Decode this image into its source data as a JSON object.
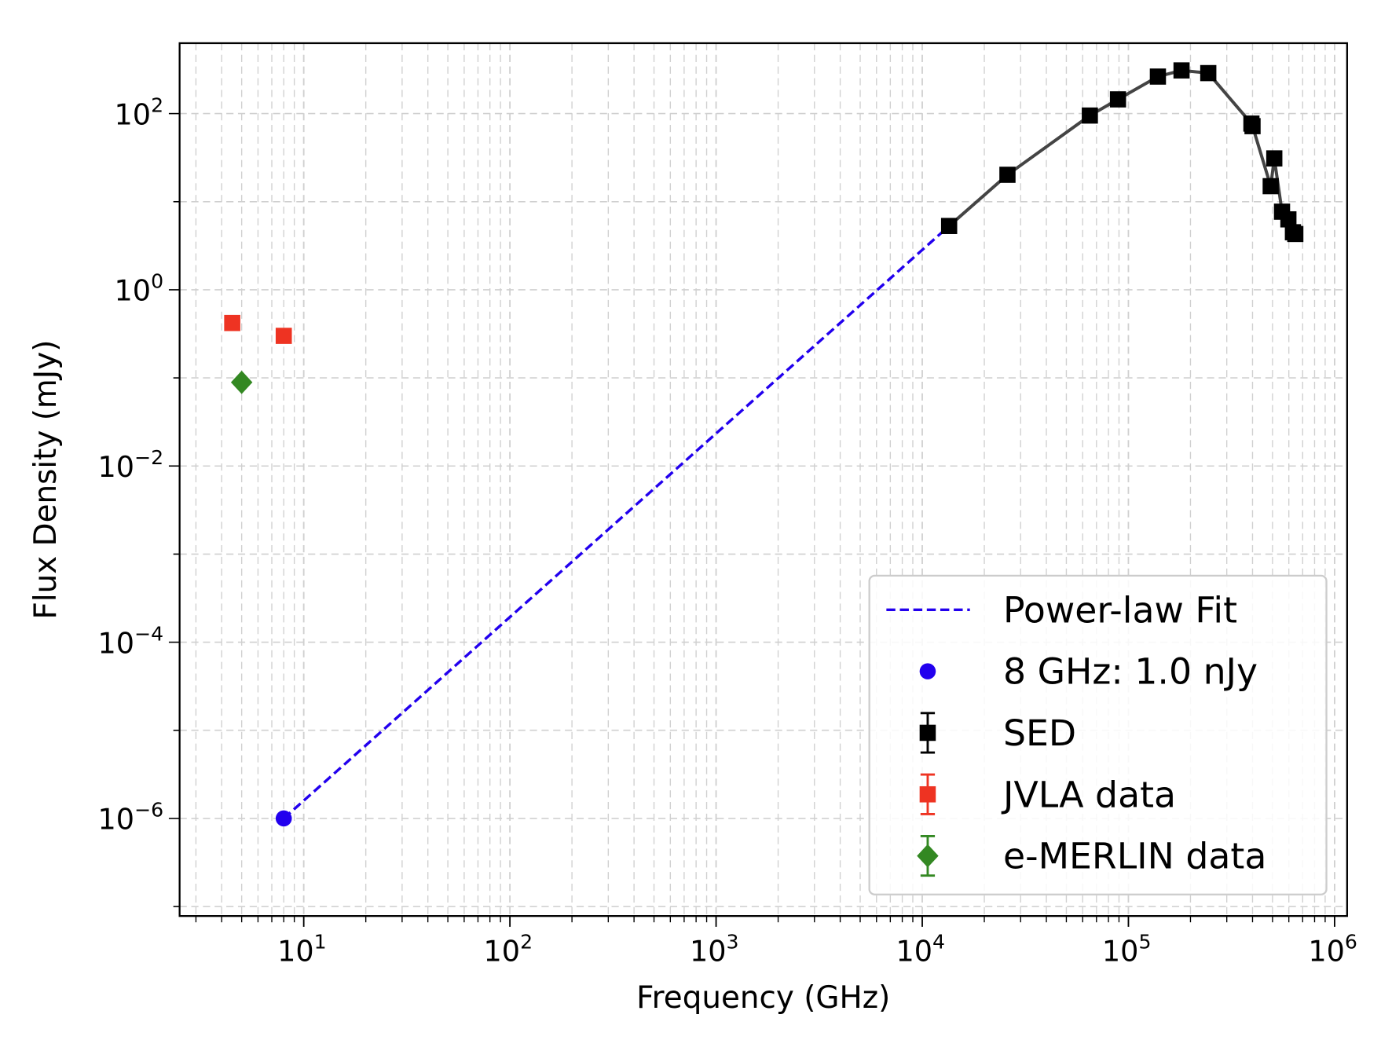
{
  "chart_data": {
    "type": "scatter",
    "xlabel": "Frequency (GHz)",
    "ylabel": "Flux Density (mJy)",
    "xscale": "log",
    "yscale": "log",
    "xlim": [
      2.5,
      1150000
    ],
    "ylim": [
      7.8e-08,
      630
    ],
    "grid": true,
    "legend_placement": "lower-right",
    "x_ticks": [
      {
        "exp": "1",
        "value": 10
      },
      {
        "exp": "2",
        "value": 100
      },
      {
        "exp": "3",
        "value": 1000
      },
      {
        "exp": "4",
        "value": 10000
      },
      {
        "exp": "5",
        "value": 100000
      },
      {
        "exp": "6",
        "value": 1000000
      }
    ],
    "y_ticks": [
      {
        "exp": "2",
        "value": 100
      },
      {
        "exp": "0",
        "value": 1
      },
      {
        "exp": "−2",
        "value": 0.01
      },
      {
        "exp": "−4",
        "value": 0.0001
      },
      {
        "exp": "−6",
        "value": 1e-06
      }
    ],
    "tick_base": "10",
    "series": [
      {
        "name": "Power-law Fit",
        "kind": "dashed-line",
        "color": "#2200ee",
        "points": [
          [
            8,
            1e-06
          ],
          [
            13500,
            5.3
          ]
        ]
      },
      {
        "name": "8 GHz: 1.0 nJy",
        "kind": "circle",
        "color": "#2200ee",
        "points": [
          [
            8,
            1e-06
          ]
        ]
      },
      {
        "name": "SED",
        "kind": "square-line",
        "color": "#000000",
        "line_color": "#444444",
        "points": [
          [
            13500,
            5.3
          ],
          [
            25900,
            20.2
          ],
          [
            65000,
            95
          ],
          [
            89000,
            145
          ],
          [
            139000,
            263
          ],
          [
            181000,
            309
          ],
          [
            244000,
            288
          ],
          [
            395000,
            77
          ],
          [
            400000,
            72
          ],
          [
            490000,
            15
          ],
          [
            510000,
            31
          ],
          [
            556000,
            7.7
          ],
          [
            597000,
            6.3
          ],
          [
            628000,
            4.5
          ],
          [
            645000,
            4.3
          ]
        ]
      },
      {
        "name": "JVLA data",
        "kind": "square",
        "color": "#ee3322",
        "points": [
          [
            4.5,
            0.42
          ],
          [
            8.0,
            0.3
          ]
        ]
      },
      {
        "name": "e-MERLIN data",
        "kind": "diamond",
        "color": "#338822",
        "points": [
          [
            5.0,
            0.089
          ]
        ]
      }
    ]
  }
}
